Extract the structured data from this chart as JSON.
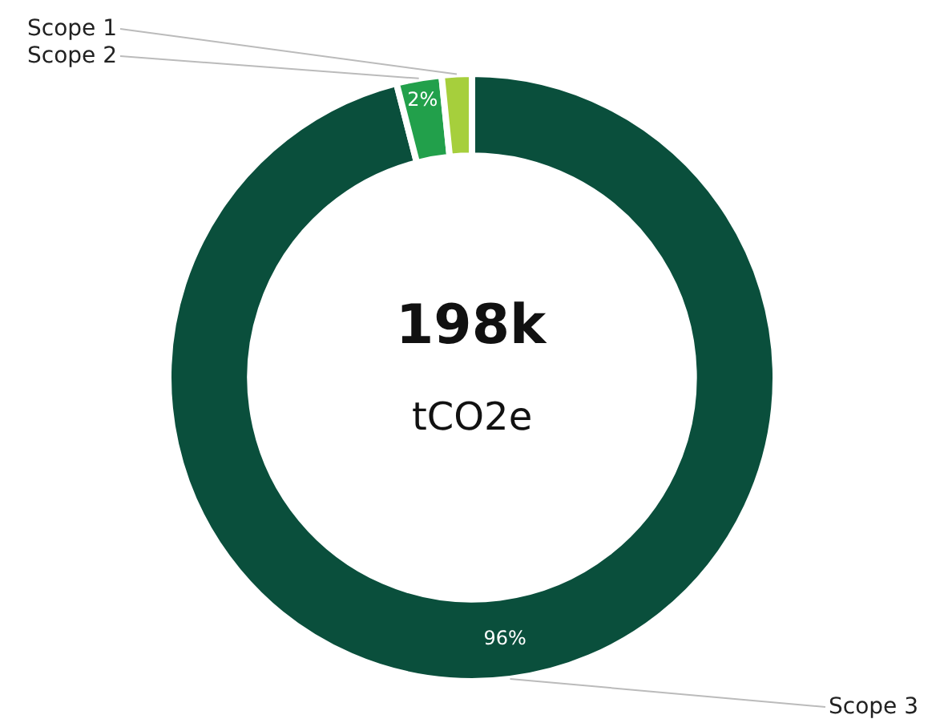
{
  "chart_data": {
    "type": "donut",
    "categories": [
      "Scope 3",
      "Scope 2",
      "Scope 1"
    ],
    "values": [
      96,
      2.4,
      1.6
    ],
    "colors": [
      "#0a4f3c",
      "#22a04b",
      "#a6cf3c"
    ],
    "value_labels": [
      "96%",
      "2%",
      null
    ],
    "annotations": [
      "198k",
      "tCO2e"
    ],
    "legend": false
  }
}
